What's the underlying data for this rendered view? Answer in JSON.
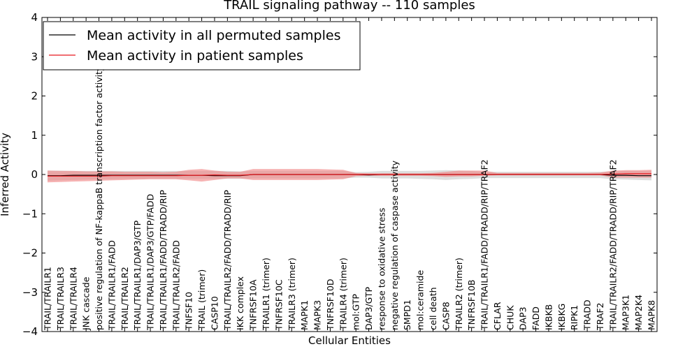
{
  "chart_data": {
    "type": "line",
    "title": "TRAIL signaling pathway -- 110 samples",
    "xlabel": "Cellular Entities",
    "ylabel": "Inferred Activity",
    "ylim": [
      -4,
      4
    ],
    "yticks": [
      "−4",
      "−3",
      "−2",
      "−1",
      "0",
      "1",
      "2",
      "3",
      "4"
    ],
    "ytick_values": [
      -4,
      -3,
      -2,
      -1,
      0,
      1,
      2,
      3,
      4
    ],
    "legend_position": "top-left",
    "categories": [
      "TRAIL/TRAILR1",
      "TRAIL/TRAILR3",
      "TRAIL/TRAILR4",
      "JNK cascade",
      "positive regulation of NF-kappaB transcription factor activity",
      "TRAIL/TRAILR1/FADD",
      "TRAIL/TRAILR2",
      "TRAIL/TRAILR1/DAP3/GTP",
      "TRAIL/TRAILR1/DAP3/GTP/FADD",
      "TRAIL/TRAILR1/FADD/TRADD/RIP",
      "TRAIL/TRAILR2/FADD",
      "TNFSF10",
      "TRAIL (trimer)",
      "CASP10",
      "TRAIL/TRAILR2/FADD/TRADD/RIP",
      "IKK complex",
      "TNFRSF10A",
      "TRAILR1 (trimer)",
      "TNFRSF10C",
      "TRAILR3 (trimer)",
      "MAPK1",
      "MAPK3",
      "TNFRSF10D",
      "TRAILR4 (trimer)",
      "mol:GTP",
      "DAP3/GTP",
      "response to oxidative stress",
      "negative regulation of caspase activity",
      "SMPD1",
      "mol:ceramide",
      "cell death",
      "CASP8",
      "TRAILR2 (trimer)",
      "TNFRSF10B",
      "TRAIL/TRAILR1/FADD/TRADD/RIP/TRAF2",
      "CFLAR",
      "CHUK",
      "DAP3",
      "FADD",
      "IKBKB",
      "IKBKG",
      "RIPK1",
      "TRADD",
      "TRAF2",
      "TRAIL/TRAILR2/FADD/TRADD/RIP/TRAF2",
      "MAP3K1",
      "MAP2K4",
      "MAPK8"
    ],
    "series": [
      {
        "name": "Mean activity in all permuted samples",
        "color": "#000000",
        "band_color": "#c8c8c8",
        "values": [
          -0.03,
          -0.03,
          -0.02,
          -0.02,
          -0.02,
          -0.02,
          -0.02,
          -0.02,
          -0.02,
          -0.02,
          -0.02,
          -0.02,
          -0.02,
          -0.03,
          -0.03,
          -0.03,
          0,
          0,
          0,
          0,
          0,
          0,
          0,
          0,
          0,
          -0.01,
          0,
          0,
          0,
          0,
          0,
          0,
          0,
          0,
          0,
          0,
          0,
          0,
          0,
          0,
          0,
          0,
          0,
          0,
          -0.02,
          -0.02,
          -0.03,
          -0.03
        ],
        "band_low": [
          -0.16,
          -0.15,
          -0.14,
          -0.13,
          -0.12,
          -0.12,
          -0.11,
          -0.11,
          -0.11,
          -0.11,
          -0.11,
          -0.11,
          -0.11,
          -0.11,
          -0.11,
          -0.11,
          -0.1,
          -0.1,
          -0.1,
          -0.1,
          -0.1,
          -0.1,
          -0.1,
          -0.1,
          -0.08,
          -0.08,
          -0.1,
          -0.1,
          -0.1,
          -0.11,
          -0.12,
          -0.14,
          -0.12,
          -0.11,
          -0.09,
          -0.09,
          -0.09,
          -0.09,
          -0.09,
          -0.09,
          -0.09,
          -0.09,
          -0.09,
          -0.09,
          -0.12,
          -0.13,
          -0.14,
          -0.15
        ],
        "band_high": [
          0.1,
          0.1,
          0.09,
          0.09,
          0.09,
          0.09,
          0.09,
          0.09,
          0.09,
          0.09,
          0.09,
          0.09,
          0.09,
          0.09,
          0.09,
          0.08,
          0.09,
          0.09,
          0.09,
          0.09,
          0.09,
          0.09,
          0.09,
          0.09,
          0.06,
          0.07,
          0.09,
          0.09,
          0.09,
          0.09,
          0.1,
          0.11,
          0.1,
          0.09,
          0.07,
          0.07,
          0.07,
          0.07,
          0.07,
          0.07,
          0.07,
          0.07,
          0.07,
          0.07,
          0.08,
          0.09,
          0.09,
          0.1
        ]
      },
      {
        "name": "Mean activity in patient samples",
        "color": "#e8181e",
        "band_color": "#f08080",
        "values": [
          -0.04,
          -0.04,
          -0.04,
          -0.04,
          -0.04,
          -0.03,
          -0.03,
          -0.03,
          -0.03,
          -0.03,
          -0.03,
          -0.02,
          -0.02,
          -0.01,
          -0.02,
          -0.02,
          0,
          0,
          0,
          0,
          0,
          0,
          0,
          0,
          0,
          0,
          0,
          0,
          0,
          0,
          0,
          0,
          0,
          0,
          0,
          0,
          0,
          0,
          0,
          0,
          0,
          0,
          0,
          0,
          0.01,
          0.02,
          0.02,
          0.02
        ],
        "band_low": [
          -0.2,
          -0.19,
          -0.18,
          -0.17,
          -0.16,
          -0.15,
          -0.14,
          -0.13,
          -0.12,
          -0.12,
          -0.12,
          -0.15,
          -0.18,
          -0.14,
          -0.1,
          -0.1,
          -0.14,
          -0.14,
          -0.14,
          -0.14,
          -0.14,
          -0.14,
          -0.13,
          -0.12,
          -0.04,
          -0.03,
          -0.03,
          -0.03,
          -0.03,
          -0.03,
          -0.04,
          -0.06,
          -0.05,
          -0.05,
          -0.03,
          -0.02,
          -0.02,
          -0.02,
          -0.02,
          -0.02,
          -0.02,
          -0.02,
          -0.02,
          -0.02,
          -0.08,
          -0.08,
          -0.08,
          -0.08
        ],
        "band_high": [
          0.1,
          0.09,
          0.09,
          0.08,
          0.08,
          0.08,
          0.07,
          0.07,
          0.07,
          0.06,
          0.07,
          0.12,
          0.14,
          0.1,
          0.07,
          0.07,
          0.14,
          0.14,
          0.14,
          0.14,
          0.14,
          0.14,
          0.13,
          0.12,
          0.04,
          0.03,
          0.03,
          0.03,
          0.03,
          0.03,
          0.04,
          0.07,
          0.1,
          0.1,
          0.1,
          0.04,
          0.04,
          0.04,
          0.04,
          0.04,
          0.04,
          0.04,
          0.04,
          0.05,
          0.1,
          0.11,
          0.11,
          0.12
        ]
      }
    ]
  }
}
